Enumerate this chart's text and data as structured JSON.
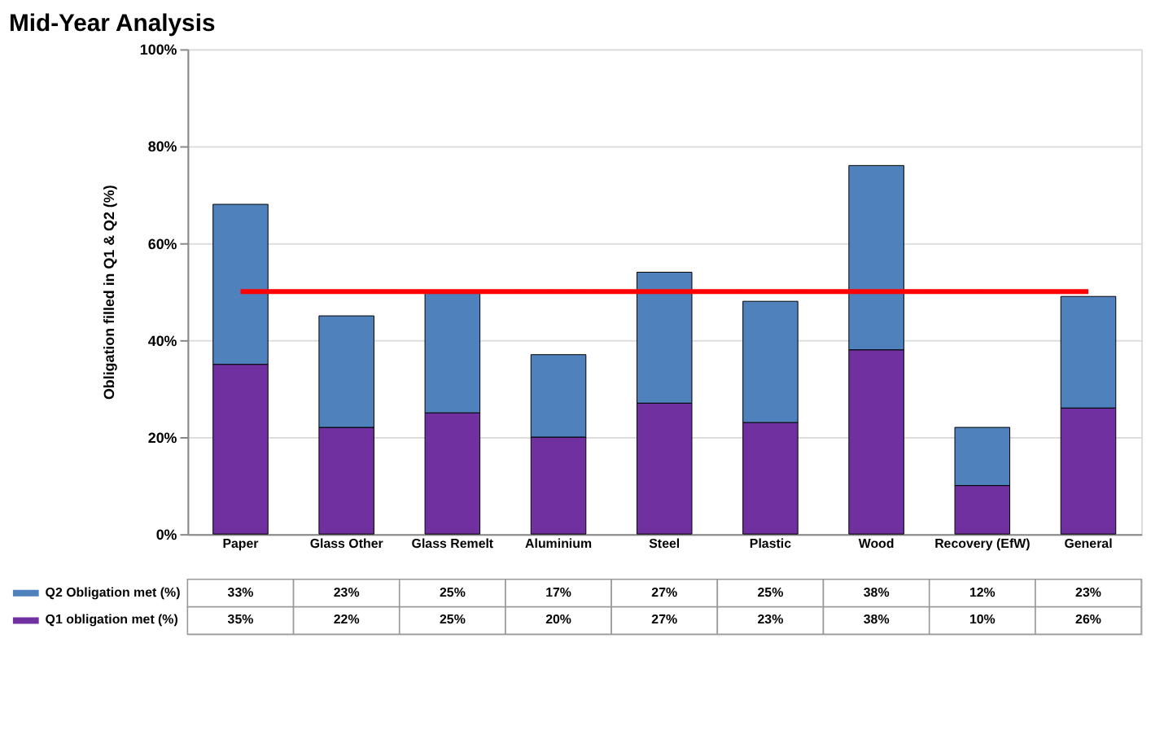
{
  "chart_data": {
    "type": "bar",
    "title": "Mid-Year Analysis",
    "ylabel": "Obligation filled in Q1 & Q2 (%)",
    "categories": [
      "Paper",
      "Glass Other",
      "Glass Remelt",
      "Aluminium",
      "Steel",
      "Plastic",
      "Wood",
      "Recovery (EfW)",
      "General"
    ],
    "stacked": true,
    "series": [
      {
        "name": "Q1 obligation met (%)",
        "color": "#7030a0",
        "values": [
          35,
          22,
          25,
          20,
          27,
          23,
          38,
          10,
          26
        ],
        "value_labels": [
          "35%",
          "22%",
          "25%",
          "20%",
          "27%",
          "23%",
          "38%",
          "10%",
          "26%"
        ]
      },
      {
        "name": "Q2 Obligation met (%)",
        "color": "#4f81bd",
        "values": [
          33,
          23,
          25,
          17,
          27,
          25,
          38,
          12,
          23
        ],
        "value_labels": [
          "33%",
          "23%",
          "25%",
          "17%",
          "27%",
          "25%",
          "38%",
          "12%",
          "23%"
        ]
      }
    ],
    "ylim": [
      0,
      100
    ],
    "yticks": [
      {
        "value": 0,
        "label": "0%"
      },
      {
        "value": 20,
        "label": "20%"
      },
      {
        "value": 40,
        "label": "40%"
      },
      {
        "value": 60,
        "label": "60%"
      },
      {
        "value": 80,
        "label": "80%"
      },
      {
        "value": 100,
        "label": "100%"
      }
    ],
    "ref_lines": [
      {
        "axis": "y",
        "value": 50,
        "color": "#ff0000"
      }
    ],
    "grid": "y",
    "legend": "bottom"
  }
}
